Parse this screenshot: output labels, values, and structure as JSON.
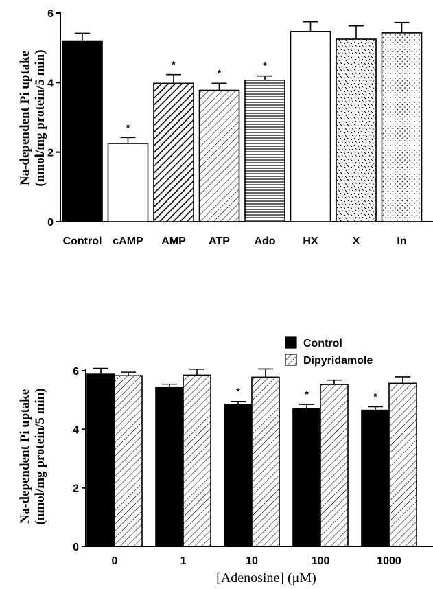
{
  "chart_data": [
    {
      "type": "bar",
      "ylabel_line1": "Na-dependent Pi uptake",
      "ylabel_line2": "(nmol/mg protein/5 min)",
      "ylim": [
        0,
        6
      ],
      "yticks": [
        "0",
        "2",
        "4",
        "6"
      ],
      "categories": [
        "Control",
        "cAMP",
        "AMP",
        "ATP",
        "Ado",
        "HX",
        "X",
        "In"
      ],
      "values": [
        5.2,
        2.25,
        3.98,
        3.78,
        4.07,
        5.47,
        5.25,
        5.43
      ],
      "errors": [
        0.22,
        0.17,
        0.25,
        0.2,
        0.12,
        0.28,
        0.38,
        0.3
      ],
      "significant": [
        false,
        true,
        true,
        true,
        true,
        false,
        false,
        false
      ],
      "fills": [
        "solid",
        "empty",
        "dense-diagonal",
        "diagonal",
        "horizontal",
        "empty",
        "speckle",
        "dots"
      ],
      "significance_marker": "*",
      "grid": false
    },
    {
      "type": "bar",
      "ylabel_line1": "Na-dependent Pi uptake",
      "ylabel_line2": "(nmol/mg protein/5 min)",
      "xlabel": "[Adenosine] (μM)",
      "ylim": [
        0,
        6
      ],
      "yticks": [
        "0",
        "2",
        "4",
        "6"
      ],
      "categories": [
        "0",
        "1",
        "10",
        "100",
        "1000"
      ],
      "series": [
        {
          "name": "Control",
          "values": [
            5.88,
            5.42,
            4.85,
            4.7,
            4.65
          ],
          "errors": [
            0.2,
            0.12,
            0.1,
            0.15,
            0.12
          ],
          "significant": [
            false,
            false,
            true,
            true,
            true
          ],
          "fill": "solid"
        },
        {
          "name": "Dipyridamole",
          "values": [
            5.83,
            5.85,
            5.78,
            5.53,
            5.57
          ],
          "errors": [
            0.12,
            0.2,
            0.28,
            0.15,
            0.22
          ],
          "significant": [
            false,
            false,
            false,
            false,
            false
          ],
          "fill": "diagonal"
        }
      ],
      "legend_position": "top-right",
      "significance_marker": "*",
      "grid": false
    }
  ]
}
